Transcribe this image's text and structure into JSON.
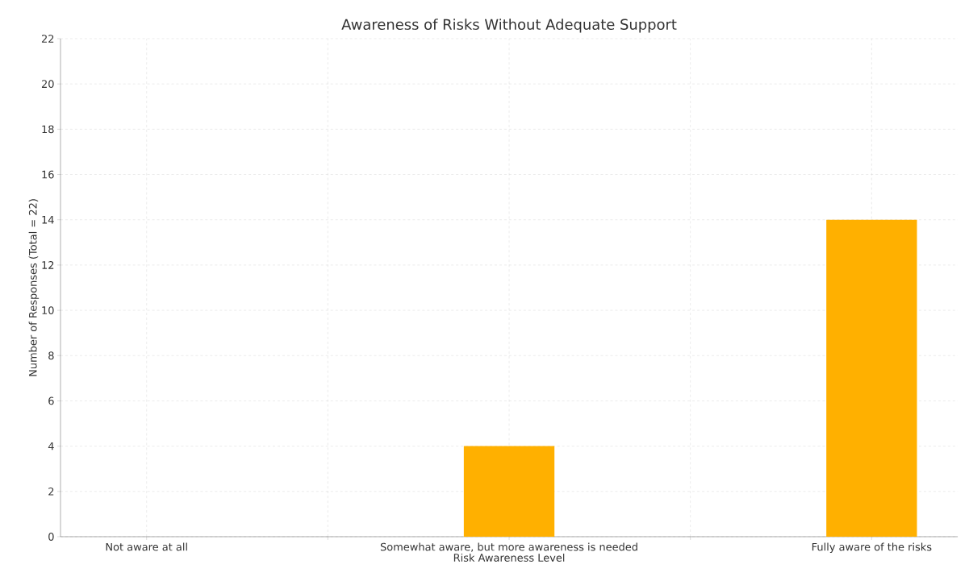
{
  "chart_data": {
    "type": "bar",
    "title": "Awareness of Risks Without Adequate Support",
    "xlabel": "Risk Awareness Level",
    "ylabel": "Number of Responses (Total = 22)",
    "categories": [
      "Not aware at all",
      null,
      "Somewhat aware, but more awareness is needed",
      null,
      "Fully aware of the risks"
    ],
    "values": [
      0,
      0,
      4,
      0,
      14
    ],
    "color": "#ffb000",
    "ylim": [
      0,
      22
    ],
    "yticks": [
      0,
      2,
      4,
      6,
      8,
      10,
      12,
      14,
      16,
      18,
      20,
      22
    ],
    "grid": true,
    "legend": false
  }
}
